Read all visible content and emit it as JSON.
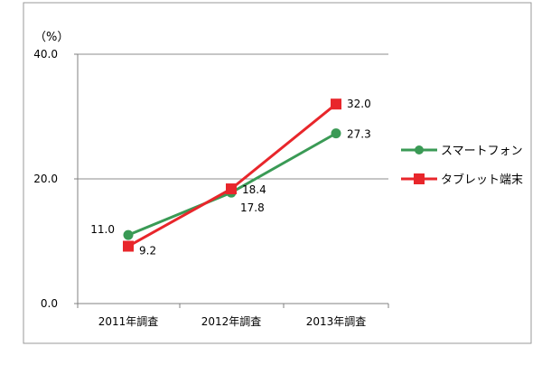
{
  "chart_data": {
    "type": "line",
    "unit_label": "（%）",
    "categories": [
      "2011年調査",
      "2012年調査",
      "2013年調査"
    ],
    "y_ticks": [
      "0.0",
      "20.0",
      "40.0"
    ],
    "ylim": [
      0,
      40
    ],
    "grid": "horizontal",
    "legend_position": "right",
    "series": [
      {
        "name": "スマートフォン",
        "values": [
          11.0,
          17.8,
          27.3
        ],
        "labels": [
          "11.0",
          "17.8",
          "27.3"
        ],
        "color": "#3a9a55",
        "marker": "circle"
      },
      {
        "name": "タブレット端末",
        "values": [
          9.2,
          18.4,
          32.0
        ],
        "labels": [
          "9.2",
          "18.4",
          "32.0"
        ],
        "color": "#e8262b",
        "marker": "square"
      }
    ]
  }
}
